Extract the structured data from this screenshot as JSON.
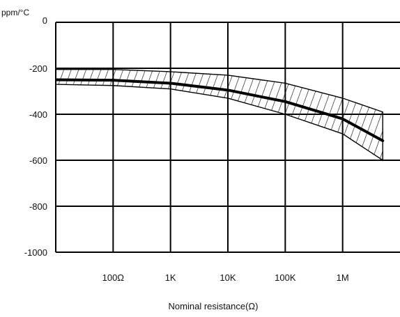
{
  "chart_data": {
    "type": "line",
    "unit_label": "ppm/°C",
    "xlabel": "Nominal resistance(Ω)",
    "ylabel": "",
    "x_scale": "log",
    "x_range": [
      10,
      10000000
    ],
    "ylim": [
      -1000,
      0
    ],
    "y_ticks": [
      0,
      -200,
      -400,
      -600,
      -800,
      -1000
    ],
    "x_tick_labels": [
      {
        "value": 100,
        "label": "100Ω"
      },
      {
        "value": 1000,
        "label": "1K"
      },
      {
        "value": 10000,
        "label": "10K"
      },
      {
        "value": 100000,
        "label": "100K"
      },
      {
        "value": 1000000,
        "label": "1M"
      }
    ],
    "grid": true,
    "series": [
      {
        "x": [
          10,
          100,
          1000,
          10000,
          100000,
          1000000,
          5000000
        ],
        "y": [
          -250,
          -252,
          -265,
          -295,
          -345,
          -420,
          -515
        ]
      }
    ],
    "band": {
      "x": [
        10,
        100,
        1000,
        10000,
        100000,
        1000000,
        5000000
      ],
      "upper": [
        -205,
        -205,
        -215,
        -230,
        -265,
        -330,
        -390
      ],
      "lower": [
        -270,
        -275,
        -290,
        -330,
        -400,
        -485,
        -600
      ]
    },
    "colors": {
      "line": "#000000",
      "grid": "#000000",
      "band_hatch": "#000000"
    }
  }
}
